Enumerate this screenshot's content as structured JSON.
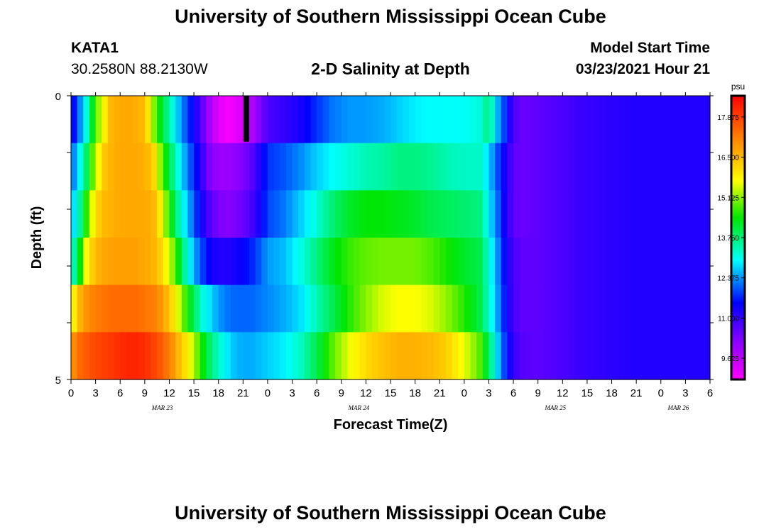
{
  "header": {
    "title": "University of Southern Mississippi Ocean Cube",
    "station": "KATA1",
    "coords": "30.2580N 88.2130W",
    "subtitle": "2-D Salinity at Depth",
    "model_label": "Model Start Time",
    "model_time": "03/23/2021 Hour 21"
  },
  "footer": {
    "title": "University of Southern Mississippi Ocean Cube"
  },
  "chart_data": {
    "type": "heatmap",
    "title": "2-D Salinity at Depth",
    "xlabel": "Forecast Time(Z)",
    "ylabel": "Depth (ft)",
    "x_tick_labels": [
      "0",
      "3",
      "6",
      "9",
      "12",
      "15",
      "18",
      "21",
      "0",
      "3",
      "6",
      "9",
      "12",
      "15",
      "18",
      "21",
      "0",
      "3",
      "6",
      "9",
      "12",
      "15",
      "18",
      "21",
      "0",
      "3",
      "6"
    ],
    "date_labels": [
      {
        "label": "MAR 23",
        "at_tick": 4
      },
      {
        "label": "MAR 24",
        "at_tick": 12
      },
      {
        "label": "MAR 25",
        "at_tick": 20
      },
      {
        "label": "MAR 26",
        "at_tick": 25
      }
    ],
    "y_tick_labels": [
      "0",
      "5"
    ],
    "ylim": [
      0,
      5
    ],
    "x_hours": [
      0,
      78
    ],
    "colorbar": {
      "unit": "psu",
      "min": 8.9,
      "max": 18.6,
      "labels": [
        "17.875",
        "16.500",
        "15.125",
        "13.750",
        "12.375",
        "11.000",
        "9.625"
      ],
      "label_values": [
        17.875,
        16.5,
        15.125,
        13.75,
        12.375,
        11.0,
        9.625
      ]
    },
    "rows": [
      {
        "depth_ft": 0,
        "points": [
          [
            0,
            11.2
          ],
          [
            1,
            12.2
          ],
          [
            2,
            13.3
          ],
          [
            3,
            14.8
          ],
          [
            4,
            15.8
          ],
          [
            5,
            16.6
          ],
          [
            6,
            16.7
          ],
          [
            7,
            16.7
          ],
          [
            8,
            16.6
          ],
          [
            9,
            16.5
          ],
          [
            10,
            15.2
          ],
          [
            11,
            14.2
          ],
          [
            12,
            13.5
          ],
          [
            13,
            12.7
          ],
          [
            14,
            12.0
          ],
          [
            15,
            11.4
          ],
          [
            16,
            10.6
          ],
          [
            17,
            9.8
          ],
          [
            18,
            9.2
          ],
          [
            19,
            9.0
          ],
          [
            20,
            9.1
          ],
          [
            21,
            9.4
          ],
          [
            22,
            9.7
          ],
          [
            23,
            10.2
          ],
          [
            24,
            10.8
          ],
          [
            26,
            11.0
          ],
          [
            28,
            11.3
          ],
          [
            30,
            11.8
          ],
          [
            32,
            12.2
          ],
          [
            34,
            12.4
          ],
          [
            36,
            12.4
          ],
          [
            38,
            12.5
          ],
          [
            40,
            12.7
          ],
          [
            42,
            12.9
          ],
          [
            44,
            13.0
          ],
          [
            46,
            13.0
          ],
          [
            48,
            13.0
          ],
          [
            50,
            13.2
          ],
          [
            51,
            13.8
          ],
          [
            52,
            12.6
          ],
          [
            53,
            11.8
          ],
          [
            54,
            10.8
          ],
          [
            55,
            10.5
          ],
          [
            57,
            10.6
          ],
          [
            60,
            10.8
          ],
          [
            63,
            11.0
          ],
          [
            66,
            11.1
          ],
          [
            69,
            11.2
          ],
          [
            72,
            11.2
          ],
          [
            75,
            11.2
          ],
          [
            78,
            11.2
          ]
        ]
      },
      {
        "depth_ft": 1,
        "points": [
          [
            0,
            12.0
          ],
          [
            1,
            12.9
          ],
          [
            2,
            14.0
          ],
          [
            3,
            15.4
          ],
          [
            4,
            16.3
          ],
          [
            5,
            16.6
          ],
          [
            6,
            16.7
          ],
          [
            7,
            16.7
          ],
          [
            8,
            16.7
          ],
          [
            9,
            16.6
          ],
          [
            10,
            16.3
          ],
          [
            11,
            15.0
          ],
          [
            12,
            14.0
          ],
          [
            13,
            13.2
          ],
          [
            14,
            12.4
          ],
          [
            15,
            11.7
          ],
          [
            16,
            11.0
          ],
          [
            17,
            10.2
          ],
          [
            18,
            10.0
          ],
          [
            19,
            10.0
          ],
          [
            20,
            10.1
          ],
          [
            21,
            10.3
          ],
          [
            22,
            10.6
          ],
          [
            23,
            11.2
          ],
          [
            24,
            11.8
          ],
          [
            26,
            12.0
          ],
          [
            28,
            12.3
          ],
          [
            30,
            12.7
          ],
          [
            32,
            13.0
          ],
          [
            34,
            13.2
          ],
          [
            36,
            13.4
          ],
          [
            38,
            13.5
          ],
          [
            40,
            13.7
          ],
          [
            42,
            13.7
          ],
          [
            44,
            13.6
          ],
          [
            46,
            13.4
          ],
          [
            48,
            13.3
          ],
          [
            50,
            13.3
          ],
          [
            51,
            12.7
          ],
          [
            52,
            12.0
          ],
          [
            53,
            11.3
          ],
          [
            54,
            10.6
          ],
          [
            55,
            10.5
          ],
          [
            57,
            10.6
          ],
          [
            60,
            10.8
          ],
          [
            63,
            11.0
          ],
          [
            66,
            11.1
          ],
          [
            69,
            11.2
          ],
          [
            72,
            11.2
          ],
          [
            75,
            11.2
          ],
          [
            78,
            11.2
          ]
        ]
      },
      {
        "depth_ft": 2,
        "points": [
          [
            0,
            12.5
          ],
          [
            1,
            13.4
          ],
          [
            2,
            14.8
          ],
          [
            3,
            16.1
          ],
          [
            4,
            16.5
          ],
          [
            5,
            16.6
          ],
          [
            6,
            16.7
          ],
          [
            7,
            16.7
          ],
          [
            8,
            16.7
          ],
          [
            9,
            16.7
          ],
          [
            10,
            16.6
          ],
          [
            11,
            15.8
          ],
          [
            12,
            14.6
          ],
          [
            13,
            13.6
          ],
          [
            14,
            12.8
          ],
          [
            15,
            12.0
          ],
          [
            16,
            11.3
          ],
          [
            17,
            10.7
          ],
          [
            18,
            10.3
          ],
          [
            19,
            10.2
          ],
          [
            20,
            10.3
          ],
          [
            21,
            10.5
          ],
          [
            22,
            10.8
          ],
          [
            23,
            11.3
          ],
          [
            24,
            11.9
          ],
          [
            26,
            12.2
          ],
          [
            28,
            12.7
          ],
          [
            30,
            13.2
          ],
          [
            32,
            13.8
          ],
          [
            34,
            14.2
          ],
          [
            36,
            14.4
          ],
          [
            38,
            14.4
          ],
          [
            40,
            14.3
          ],
          [
            42,
            14.2
          ],
          [
            44,
            14.0
          ],
          [
            46,
            13.9
          ],
          [
            48,
            13.8
          ],
          [
            50,
            13.7
          ],
          [
            51,
            12.9
          ],
          [
            52,
            12.2
          ],
          [
            53,
            11.3
          ],
          [
            54,
            10.6
          ],
          [
            55,
            10.5
          ],
          [
            57,
            10.6
          ],
          [
            60,
            10.8
          ],
          [
            63,
            11.0
          ],
          [
            66,
            11.1
          ],
          [
            69,
            11.2
          ],
          [
            72,
            11.2
          ],
          [
            75,
            11.2
          ],
          [
            78,
            11.2
          ]
        ]
      },
      {
        "depth_ft": 3,
        "points": [
          [
            0,
            13.0
          ],
          [
            1,
            14.2
          ],
          [
            2,
            15.9
          ],
          [
            3,
            16.5
          ],
          [
            4,
            16.7
          ],
          [
            5,
            16.8
          ],
          [
            6,
            16.8
          ],
          [
            7,
            16.8
          ],
          [
            8,
            16.8
          ],
          [
            9,
            16.7
          ],
          [
            10,
            16.6
          ],
          [
            11,
            16.2
          ],
          [
            12,
            15.5
          ],
          [
            13,
            14.5
          ],
          [
            14,
            13.4
          ],
          [
            15,
            12.5
          ],
          [
            16,
            11.9
          ],
          [
            17,
            11.4
          ],
          [
            18,
            11.2
          ],
          [
            19,
            11.2
          ],
          [
            20,
            11.3
          ],
          [
            21,
            11.5
          ],
          [
            22,
            11.7
          ],
          [
            23,
            12.0
          ],
          [
            24,
            12.4
          ],
          [
            26,
            12.6
          ],
          [
            28,
            13.1
          ],
          [
            30,
            13.7
          ],
          [
            32,
            14.3
          ],
          [
            34,
            14.7
          ],
          [
            36,
            14.9
          ],
          [
            38,
            15.0
          ],
          [
            40,
            15.0
          ],
          [
            42,
            15.0
          ],
          [
            44,
            14.8
          ],
          [
            46,
            14.5
          ],
          [
            48,
            14.2
          ],
          [
            50,
            14.0
          ],
          [
            51,
            13.2
          ],
          [
            52,
            12.4
          ],
          [
            53,
            11.5
          ],
          [
            54,
            10.8
          ],
          [
            55,
            10.6
          ],
          [
            57,
            10.6
          ],
          [
            60,
            10.8
          ],
          [
            63,
            11.0
          ],
          [
            66,
            11.1
          ],
          [
            69,
            11.2
          ],
          [
            72,
            11.2
          ],
          [
            75,
            11.2
          ],
          [
            78,
            11.2
          ]
        ]
      },
      {
        "depth_ft": 4,
        "points": [
          [
            0,
            15.5
          ],
          [
            1,
            16.5
          ],
          [
            2,
            17.0
          ],
          [
            3,
            17.2
          ],
          [
            4,
            17.3
          ],
          [
            5,
            17.4
          ],
          [
            6,
            17.4
          ],
          [
            7,
            17.4
          ],
          [
            8,
            17.4
          ],
          [
            9,
            17.3
          ],
          [
            10,
            17.2
          ],
          [
            11,
            16.9
          ],
          [
            12,
            16.4
          ],
          [
            13,
            15.6
          ],
          [
            14,
            14.7
          ],
          [
            15,
            13.9
          ],
          [
            16,
            13.2
          ],
          [
            17,
            12.8
          ],
          [
            18,
            12.4
          ],
          [
            19,
            12.2
          ],
          [
            20,
            12.1
          ],
          [
            21,
            12.1
          ],
          [
            22,
            12.1
          ],
          [
            23,
            12.2
          ],
          [
            24,
            12.3
          ],
          [
            26,
            12.5
          ],
          [
            28,
            12.8
          ],
          [
            30,
            13.4
          ],
          [
            32,
            14.0
          ],
          [
            34,
            14.6
          ],
          [
            36,
            15.1
          ],
          [
            38,
            15.5
          ],
          [
            40,
            15.7
          ],
          [
            42,
            15.7
          ],
          [
            44,
            15.5
          ],
          [
            46,
            15.1
          ],
          [
            48,
            14.6
          ],
          [
            50,
            14.0
          ],
          [
            51,
            13.3
          ],
          [
            52,
            12.5
          ],
          [
            53,
            11.6
          ],
          [
            54,
            10.8
          ],
          [
            55,
            10.6
          ],
          [
            57,
            10.6
          ],
          [
            60,
            10.8
          ],
          [
            63,
            11.0
          ],
          [
            66,
            11.1
          ],
          [
            69,
            11.2
          ],
          [
            72,
            11.2
          ],
          [
            75,
            11.2
          ],
          [
            78,
            11.2
          ]
        ]
      },
      {
        "depth_ft": 5,
        "points": [
          [
            0,
            16.8
          ],
          [
            1,
            17.4
          ],
          [
            2,
            17.6
          ],
          [
            3,
            17.8
          ],
          [
            4,
            17.9
          ],
          [
            5,
            18.0
          ],
          [
            6,
            18.1
          ],
          [
            7,
            18.2
          ],
          [
            8,
            18.2
          ],
          [
            9,
            18.1
          ],
          [
            10,
            17.9
          ],
          [
            11,
            17.6
          ],
          [
            12,
            17.2
          ],
          [
            13,
            16.6
          ],
          [
            14,
            16.0
          ],
          [
            15,
            15.3
          ],
          [
            16,
            14.5
          ],
          [
            17,
            13.8
          ],
          [
            18,
            13.3
          ],
          [
            19,
            12.9
          ],
          [
            20,
            12.6
          ],
          [
            21,
            12.5
          ],
          [
            22,
            12.5
          ],
          [
            23,
            12.6
          ],
          [
            24,
            12.7
          ],
          [
            26,
            12.9
          ],
          [
            28,
            13.3
          ],
          [
            30,
            14.0
          ],
          [
            32,
            14.9
          ],
          [
            34,
            15.6
          ],
          [
            36,
            16.1
          ],
          [
            38,
            16.4
          ],
          [
            40,
            16.6
          ],
          [
            42,
            16.6
          ],
          [
            44,
            16.5
          ],
          [
            46,
            16.2
          ],
          [
            48,
            15.6
          ],
          [
            50,
            14.8
          ],
          [
            51,
            13.9
          ],
          [
            52,
            12.8
          ],
          [
            53,
            11.8
          ],
          [
            54,
            11.0
          ],
          [
            55,
            10.7
          ],
          [
            57,
            10.6
          ],
          [
            60,
            10.8
          ],
          [
            63,
            11.0
          ],
          [
            66,
            11.1
          ],
          [
            69,
            11.2
          ],
          [
            72,
            11.2
          ],
          [
            75,
            11.2
          ],
          [
            78,
            11.2
          ]
        ]
      }
    ],
    "marker": {
      "hour": 21.4,
      "depth_ft": 0
    }
  }
}
